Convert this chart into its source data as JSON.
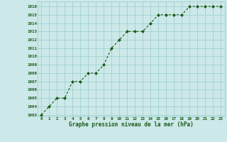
{
  "x": [
    0,
    1,
    2,
    3,
    4,
    5,
    6,
    7,
    8,
    9,
    10,
    11,
    12,
    13,
    14,
    15,
    16,
    17,
    18,
    19,
    20,
    21,
    22,
    23
  ],
  "y": [
    1003,
    1004,
    1005,
    1005,
    1007,
    1007,
    1008,
    1008,
    1009,
    1011,
    1012,
    1013,
    1013,
    1013,
    1014,
    1015,
    1015,
    1015,
    1015,
    1016,
    1016,
    1016,
    1016,
    1016
  ],
  "line_color": "#1a5c1a",
  "marker_color": "#1a5c1a",
  "bg_color": "#cce8e8",
  "grid_color": "#99cccc",
  "ylabel_values": [
    1003,
    1004,
    1005,
    1006,
    1007,
    1008,
    1009,
    1010,
    1011,
    1012,
    1013,
    1014,
    1015,
    1016
  ],
  "xlabel": "Graphe pression niveau de la mer (hPa)",
  "ylim": [
    1002.8,
    1016.6
  ],
  "xlim": [
    -0.5,
    23.5
  ],
  "text_color": "#1a5c1a"
}
